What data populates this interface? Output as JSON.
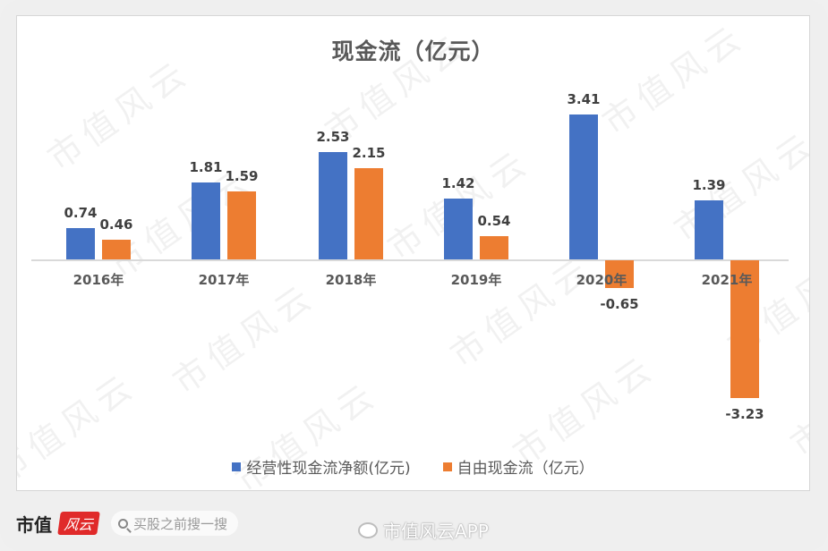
{
  "chart_data": {
    "type": "bar",
    "title": "现金流（亿元）",
    "categories": [
      "2016年",
      "2017年",
      "2018年",
      "2019年",
      "2020年",
      "2021年"
    ],
    "series": [
      {
        "name": "经营性现金流净额(亿元)",
        "color": "#4472c4",
        "values": [
          0.74,
          1.81,
          2.53,
          1.42,
          3.41,
          1.39
        ]
      },
      {
        "name": "自由现金流（亿元）",
        "color": "#ed7d31",
        "values": [
          0.46,
          1.59,
          2.15,
          0.54,
          -0.65,
          -3.23
        ]
      }
    ],
    "xlabel": "",
    "ylabel": "",
    "data_labels": true,
    "grid": false,
    "legend_position": "bottom",
    "ylim": [
      -3.5,
      3.8
    ]
  },
  "chart": {
    "title": "现金流（亿元）",
    "categories": [
      "2016年",
      "2017年",
      "2018年",
      "2019年",
      "2020年",
      "2021年"
    ],
    "blue_labels": [
      "0.74",
      "1.81",
      "2.53",
      "1.42",
      "3.41",
      "1.39"
    ],
    "orange_labels": [
      "0.46",
      "1.59",
      "2.15",
      "0.54",
      "-0.65",
      "-3.23"
    ],
    "legend": {
      "series1": "经营性现金流净额(亿元)",
      "series2": "自由现金流（亿元）"
    },
    "colors": {
      "series1": "#4472c4",
      "series2": "#ed7d31"
    }
  },
  "watermark": "市值风云",
  "footer": {
    "brand_text": "市值",
    "brand_badge": "风云",
    "search_placeholder": "买股之前搜一搜",
    "weibo_text": "市值风云APP"
  }
}
